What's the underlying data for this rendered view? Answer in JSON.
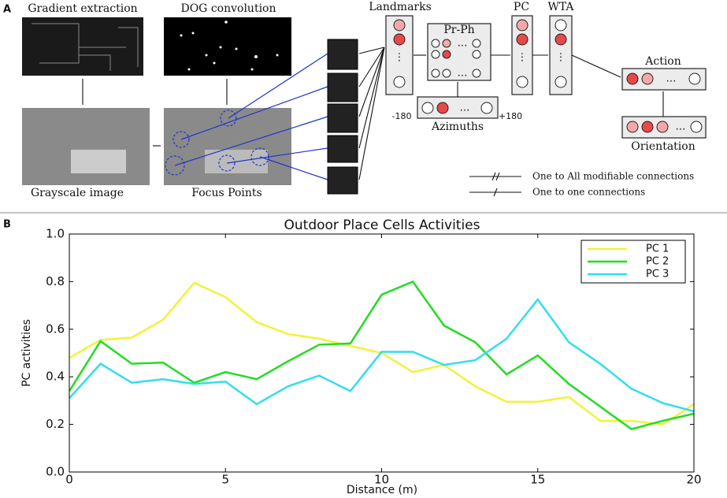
{
  "panel_a": {
    "label": "A",
    "gradient": "Gradient extraction",
    "dog": "DOG convolution",
    "grayscale": "Grayscale image",
    "focus": "Focus Points",
    "landmarks": "Landmarks",
    "prph": "Pr-Ph",
    "pc": "PC",
    "wta": "WTA",
    "action": "Action",
    "azimuths": "Azimuths",
    "az_min": "-180",
    "az_max": "+180",
    "orientation": "Orientation",
    "legend_all": "One to All modifiable connections",
    "legend_one": "One to one connections"
  },
  "chart_data": {
    "type": "line",
    "panel_label": "B",
    "title": "Outdoor Place Cells Activities",
    "x_label": "Distance (m)",
    "y_label": "PC activities",
    "x": [
      0,
      1,
      2,
      3,
      4,
      5,
      6,
      7,
      8,
      9,
      10,
      11,
      12,
      13,
      14,
      15,
      16,
      17,
      18,
      19,
      20
    ],
    "series": [
      {
        "name": "PC 1",
        "color": "#f2f23a",
        "values": [
          0.48,
          0.555,
          0.565,
          0.64,
          0.795,
          0.735,
          0.63,
          0.58,
          0.56,
          0.53,
          0.5,
          0.42,
          0.45,
          0.36,
          0.295,
          0.295,
          0.315,
          0.215,
          0.215,
          0.2,
          0.285
        ]
      },
      {
        "name": "PC 2",
        "color": "#22dd22",
        "values": [
          0.34,
          0.55,
          0.455,
          0.46,
          0.375,
          0.42,
          0.39,
          0.465,
          0.535,
          0.54,
          0.745,
          0.8,
          0.615,
          0.545,
          0.41,
          0.49,
          0.37,
          0.275,
          0.18,
          0.215,
          0.245
        ]
      },
      {
        "name": "PC 3",
        "color": "#33ddee",
        "values": [
          0.31,
          0.455,
          0.375,
          0.39,
          0.37,
          0.38,
          0.285,
          0.36,
          0.405,
          0.34,
          0.505,
          0.505,
          0.45,
          0.47,
          0.56,
          0.725,
          0.545,
          0.455,
          0.35,
          0.29,
          0.255
        ]
      }
    ],
    "xlim": [
      0,
      20
    ],
    "xticks": [
      0,
      5,
      10,
      15,
      20
    ],
    "ylim": [
      0,
      1
    ],
    "yticks": [
      {
        "value": 0,
        "label": "0.0"
      },
      0.2,
      0.4,
      0.6,
      0.8,
      {
        "value": 1,
        "label": "1.0"
      }
    ],
    "legend": "upper right"
  }
}
